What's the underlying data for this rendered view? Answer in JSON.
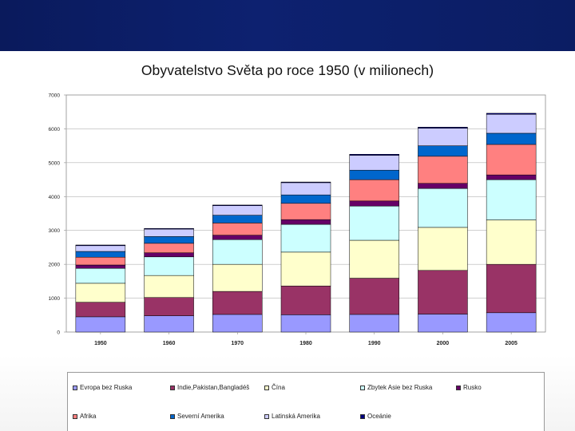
{
  "chart_data": {
    "type": "bar",
    "stacked": true,
    "title": "Obyvatelstvo Světa po roce 1950 (v milionech)",
    "categories": [
      "1950",
      "1960",
      "1970",
      "1980",
      "1990",
      "2000",
      "2005"
    ],
    "ylim": [
      0,
      7000
    ],
    "yticks": [
      "0",
      "1000",
      "2000",
      "3000",
      "4000",
      "5000",
      "6000",
      "7000"
    ],
    "grid": true,
    "legend_position": "bottom",
    "series": [
      {
        "name": "Evropa bez Ruska",
        "color": "#9999ff",
        "values": [
          450,
          480,
          520,
          510,
          520,
          530,
          570
        ]
      },
      {
        "name": "Indie,Pakistan,Bangladéš",
        "color": "#993366",
        "values": [
          430,
          540,
          680,
          850,
          1070,
          1290,
          1430
        ]
      },
      {
        "name": "Čína",
        "color": "#ffffcc",
        "values": [
          560,
          650,
          800,
          1000,
          1120,
          1270,
          1310
        ]
      },
      {
        "name": "Zbytek Asie bez Ruska",
        "color": "#ccffff",
        "values": [
          440,
          550,
          730,
          820,
          1010,
          1150,
          1190
        ]
      },
      {
        "name": "Rusko",
        "color": "#660066",
        "values": [
          100,
          120,
          130,
          140,
          150,
          150,
          140
        ]
      },
      {
        "name": "Afrika",
        "color": "#ff8080",
        "values": [
          230,
          280,
          360,
          480,
          630,
          800,
          900
        ]
      },
      {
        "name": "Severní Amerika",
        "color": "#0066cc",
        "values": [
          170,
          200,
          230,
          250,
          280,
          310,
          330
        ]
      },
      {
        "name": "Latinská Amerika",
        "color": "#ccccff",
        "values": [
          170,
          220,
          280,
          360,
          440,
          520,
          560
        ]
      },
      {
        "name": "Oceánie",
        "color": "#000080",
        "values": [
          20,
          20,
          20,
          20,
          30,
          30,
          30
        ]
      }
    ]
  }
}
